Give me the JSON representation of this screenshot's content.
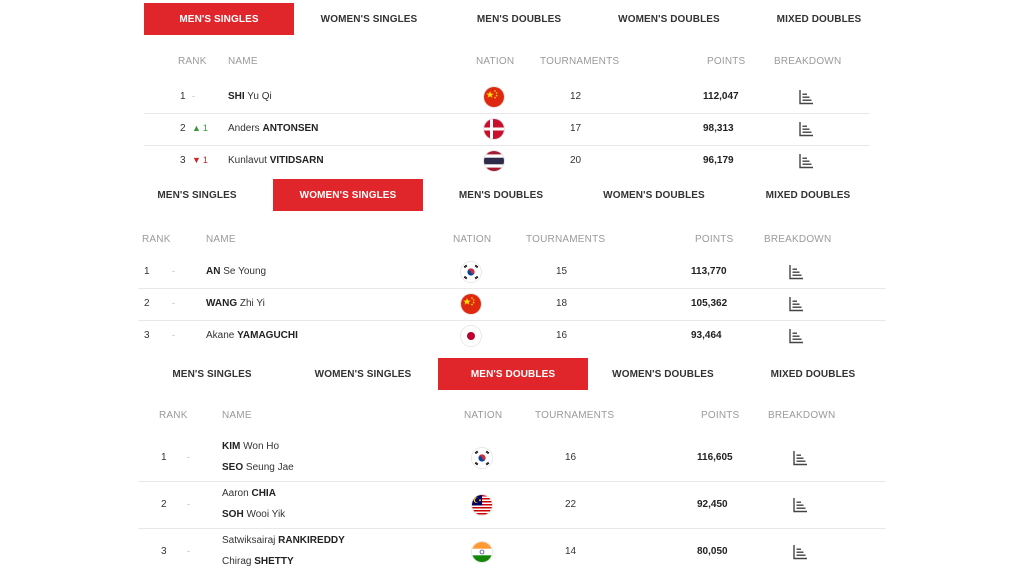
{
  "tab_labels": [
    "MEN'S SINGLES",
    "WOMEN'S SINGLES",
    "MEN'S DOUBLES",
    "WOMEN'S DOUBLES",
    "MIXED DOUBLES"
  ],
  "columns": {
    "rank": "RANK",
    "name": "NAME",
    "nation": "NATION",
    "tournaments": "TOURNAMENTS",
    "points": "POINTS",
    "breakdown": "BREAKDOWN"
  },
  "colors": {
    "accent": "#e0262b",
    "up": "#3a9a3a",
    "down": "#d0262b"
  },
  "sections": [
    {
      "active_tab": "MEN'S SINGLES",
      "rows": [
        {
          "rank": "1",
          "movement": "-",
          "players": [
            {
              "first": "",
              "surname": "SHI",
              "rest": "Yu Qi"
            }
          ],
          "nation_icon": "china-flag-icon",
          "tournaments": "12",
          "points": "112,047"
        },
        {
          "rank": "2",
          "movement": "1",
          "movement_dir": "up",
          "players": [
            {
              "first": "Anders",
              "surname": "ANTONSEN",
              "rest": ""
            }
          ],
          "nation_icon": "denmark-flag-icon",
          "tournaments": "17",
          "points": "98,313"
        },
        {
          "rank": "3",
          "movement": "1",
          "movement_dir": "down",
          "players": [
            {
              "first": "Kunlavut",
              "surname": "VITIDSARN",
              "rest": ""
            }
          ],
          "nation_icon": "thailand-flag-icon",
          "tournaments": "20",
          "points": "96,179"
        }
      ]
    },
    {
      "active_tab": "WOMEN'S SINGLES",
      "rows": [
        {
          "rank": "1",
          "movement": "-",
          "players": [
            {
              "first": "",
              "surname": "AN",
              "rest": "Se Young"
            }
          ],
          "nation_icon": "korea-flag-icon",
          "tournaments": "15",
          "points": "113,770"
        },
        {
          "rank": "2",
          "movement": "-",
          "players": [
            {
              "first": "",
              "surname": "WANG",
              "rest": "Zhi Yi"
            }
          ],
          "nation_icon": "china-flag-icon",
          "tournaments": "18",
          "points": "105,362"
        },
        {
          "rank": "3",
          "movement": "-",
          "players": [
            {
              "first": "Akane",
              "surname": "YAMAGUCHI",
              "rest": ""
            }
          ],
          "nation_icon": "japan-flag-icon",
          "tournaments": "16",
          "points": "93,464"
        }
      ]
    },
    {
      "active_tab": "MEN'S DOUBLES",
      "rows": [
        {
          "rank": "1",
          "movement": "-",
          "players": [
            {
              "first": "",
              "surname": "KIM",
              "rest": "Won Ho"
            },
            {
              "first": "",
              "surname": "SEO",
              "rest": "Seung Jae"
            }
          ],
          "nation_icon": "korea-flag-icon",
          "tournaments": "16",
          "points": "116,605"
        },
        {
          "rank": "2",
          "movement": "-",
          "players": [
            {
              "first": "Aaron",
              "surname": "CHIA",
              "rest": ""
            },
            {
              "first": "",
              "surname": "SOH",
              "rest": "Wooi Yik"
            }
          ],
          "nation_icon": "malaysia-flag-icon",
          "tournaments": "22",
          "points": "92,450"
        },
        {
          "rank": "3",
          "movement": "-",
          "players": [
            {
              "first": "Satwiksairaj",
              "surname": "RANKIREDDY",
              "rest": ""
            },
            {
              "first": "Chirag",
              "surname": "SHETTY",
              "rest": ""
            }
          ],
          "nation_icon": "india-flag-icon",
          "tournaments": "14",
          "points": "80,050"
        }
      ]
    }
  ]
}
